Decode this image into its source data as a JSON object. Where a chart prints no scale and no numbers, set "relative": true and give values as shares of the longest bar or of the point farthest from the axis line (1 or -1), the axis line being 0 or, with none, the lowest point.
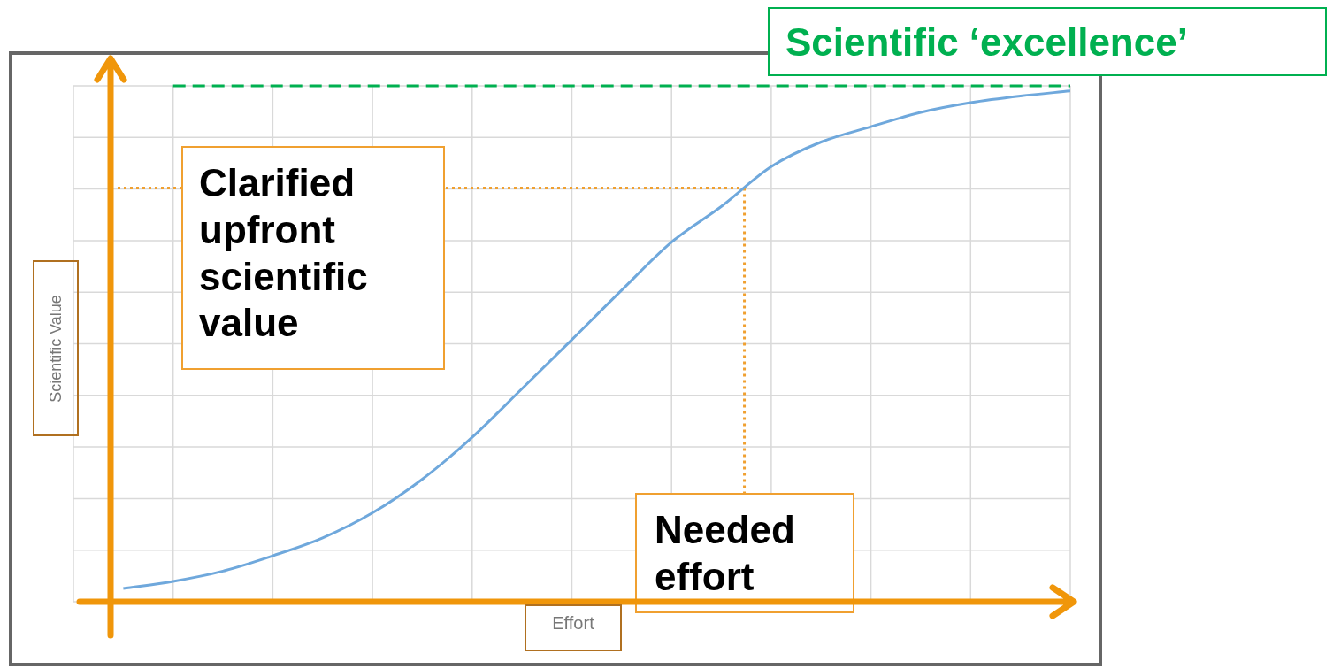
{
  "chart_data": {
    "type": "line",
    "relative": true,
    "xlabel": "Effort",
    "ylabel": "Scientific Value",
    "categories": [
      null,
      null,
      null,
      null,
      null,
      null,
      null,
      null,
      null,
      null,
      null,
      null,
      null,
      null,
      null,
      null,
      null,
      null,
      null,
      null
    ],
    "series": [
      {
        "color": "#6fa8dc",
        "values": [
          0.026,
          0.04,
          0.06,
          0.09,
          0.125,
          0.174,
          0.24,
          0.322,
          0.417,
          0.513,
          0.61,
          0.704,
          0.774,
          0.852,
          0.9,
          0.93,
          0.958,
          0.977,
          0.99,
          1
        ]
      }
    ],
    "ref_lines": [
      {
        "axis": "y",
        "value": 1.01,
        "label": "Scientific ‘excellence’",
        "color": "#00b050",
        "line_style": "dashed"
      },
      {
        "axis": "y",
        "value": 0.81,
        "label": "Clarified upfront scientific value",
        "color": "#f0a030",
        "line_style": "dotted"
      }
    ],
    "annotations": [
      "Needed effort"
    ],
    "grid": true,
    "tick_labels": false,
    "legend": false,
    "marker": "none",
    "line_style": "solid"
  }
}
